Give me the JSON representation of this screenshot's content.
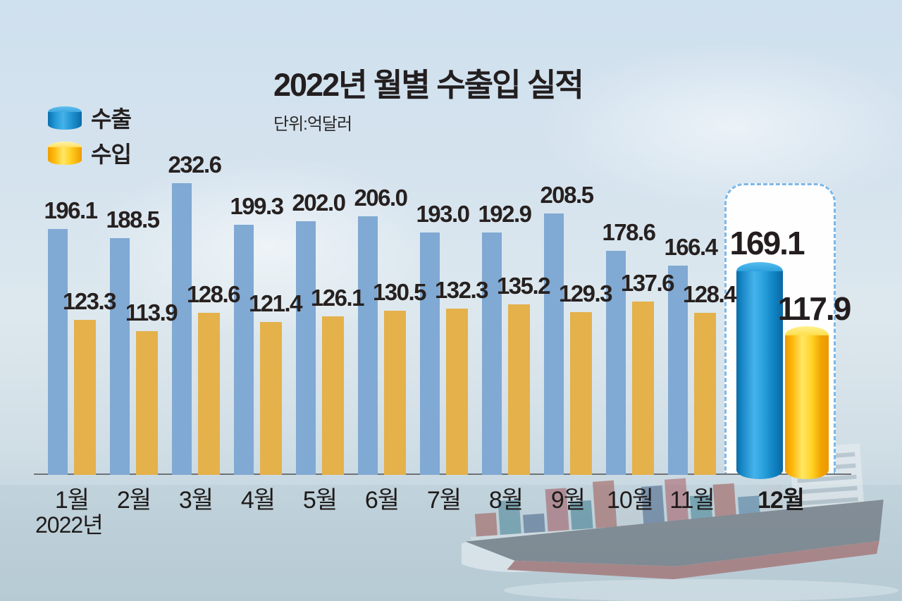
{
  "title": "2022년 월별 수출입 실적",
  "unit_label": "단위:억달러",
  "year_label": "2022년",
  "legend": {
    "export_label": "수출",
    "import_label": "수입"
  },
  "colors": {
    "export_flat": "#80a9d3",
    "import_flat": "#e4b14b",
    "export_accent": "#1e95d4",
    "import_accent": "#ffc415",
    "highlight_border": "#7fb8e6",
    "text": "#26201f",
    "axis": "#6e7277",
    "background_sky": "#d5e3ee"
  },
  "chart_data": {
    "type": "bar",
    "title": "2022년 월별 수출입 실적",
    "unit": "단위:억달러",
    "categories": [
      "1월",
      "2월",
      "3월",
      "4월",
      "5월",
      "6월",
      "7월",
      "8월",
      "9월",
      "10월",
      "11월",
      "12월"
    ],
    "series": [
      {
        "name": "수출",
        "values": [
          196.1,
          188.5,
          232.6,
          199.3,
          202.0,
          206.0,
          193.0,
          192.9,
          208.5,
          178.6,
          166.4,
          169.1
        ]
      },
      {
        "name": "수입",
        "values": [
          123.3,
          113.9,
          128.6,
          121.4,
          126.1,
          130.5,
          132.3,
          135.2,
          129.3,
          137.6,
          128.4,
          117.9
        ]
      }
    ],
    "highlight_category": "12월",
    "xlabel": "2022년",
    "ylabel": "억달러",
    "grid": false,
    "legend_position": "top-left",
    "data_labels": true
  }
}
